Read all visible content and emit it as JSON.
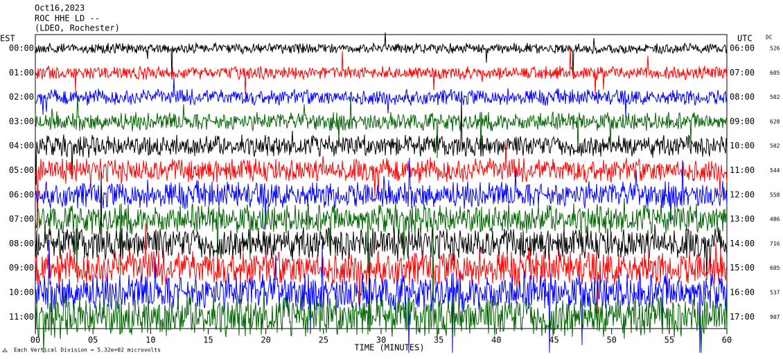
{
  "header": {
    "date": "Oct16,2023",
    "station": "ROC HHE LD --",
    "network": "(LDEO, Rochester)"
  },
  "left_zone": "EST",
  "right_zone": "UTC",
  "dc_heading": "DC",
  "rows": [
    {
      "left": "00:00",
      "right": "06:00",
      "dc": "526",
      "color": "#000000"
    },
    {
      "left": "01:00",
      "right": "07:00",
      "dc": "605",
      "color": "#ff0000"
    },
    {
      "left": "02:00",
      "right": "08:00",
      "dc": "502",
      "color": "#0000ff"
    },
    {
      "left": "03:00",
      "right": "09:00",
      "dc": "628",
      "color": "#006400"
    },
    {
      "left": "04:00",
      "right": "10:00",
      "dc": "502",
      "color": "#000000"
    },
    {
      "left": "05:00",
      "right": "11:00",
      "dc": "544",
      "color": "#ff0000"
    },
    {
      "left": "06:00",
      "right": "12:00",
      "dc": "558",
      "color": "#0000ff"
    },
    {
      "left": "07:00",
      "right": "13:00",
      "dc": "486",
      "color": "#006400"
    },
    {
      "left": "08:00",
      "right": "14:00",
      "dc": "716",
      "color": "#000000"
    },
    {
      "left": "09:00",
      "right": "15:00",
      "dc": "605",
      "color": "#ff0000"
    },
    {
      "left": "10:00",
      "right": "16:00",
      "dc": "537",
      "color": "#0000ff"
    },
    {
      "left": "11:00",
      "right": "17:00",
      "dc": "907",
      "color": "#006400"
    }
  ],
  "x_axis": {
    "label": "TIME (MINUTES)",
    "xlim": [
      0,
      60
    ],
    "xticks": [
      {
        "value": 0,
        "label": "00"
      },
      {
        "value": 5,
        "label": "05"
      },
      10,
      15,
      20,
      25,
      30,
      35,
      40,
      45,
      50,
      55,
      60
    ]
  },
  "footer": "Each Vertical Division = 5.32e+02 microvolts"
}
